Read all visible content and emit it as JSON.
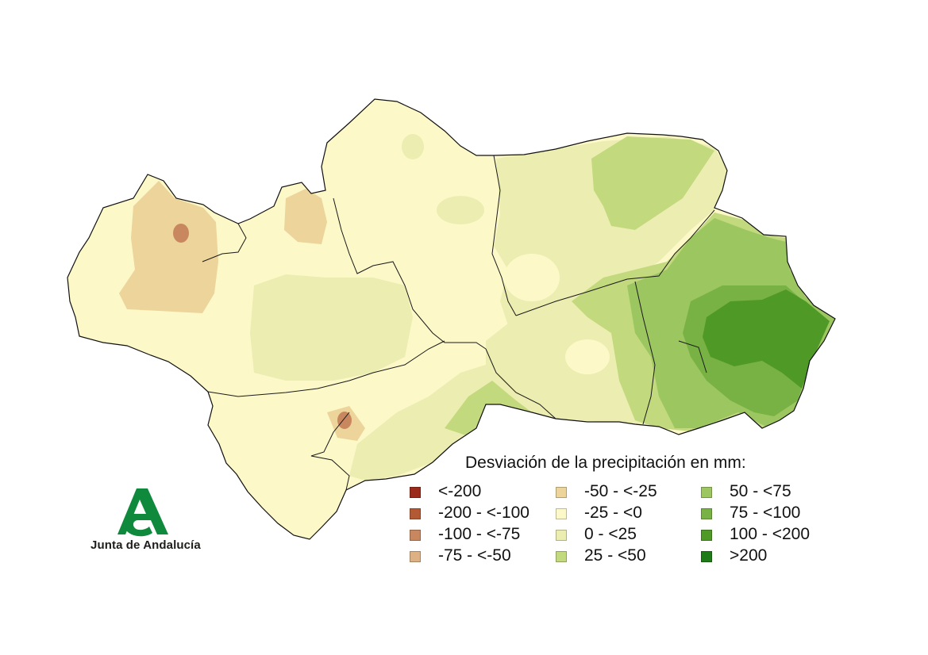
{
  "map": {
    "region": "Andalucía"
  },
  "legend": {
    "title": "Desviación de la precipitación en mm:",
    "items": [
      {
        "label": "<-200",
        "color": "#9b2a1a"
      },
      {
        "label": "-200 - <-100",
        "color": "#b35a35"
      },
      {
        "label": "-100 - <-75",
        "color": "#c8875e"
      },
      {
        "label": "-75 - <-50",
        "color": "#ddb183"
      },
      {
        "label": "-50 - <-25",
        "color": "#ecd49b"
      },
      {
        "label": "-25 - <0",
        "color": "#fcf8c8"
      },
      {
        "label": "0 - <25",
        "color": "#ecedb0"
      },
      {
        "label": "25 - <50",
        "color": "#c2d97e"
      },
      {
        "label": "50 - <75",
        "color": "#9cc660"
      },
      {
        "label": "75 - <100",
        "color": "#78b244"
      },
      {
        "label": "100 - <200",
        "color": "#4f9a27"
      },
      {
        "label": ">200",
        "color": "#1f7a18"
      }
    ]
  },
  "logo": {
    "text": "Junta de Andalucía",
    "color": "#0f8a3c"
  }
}
